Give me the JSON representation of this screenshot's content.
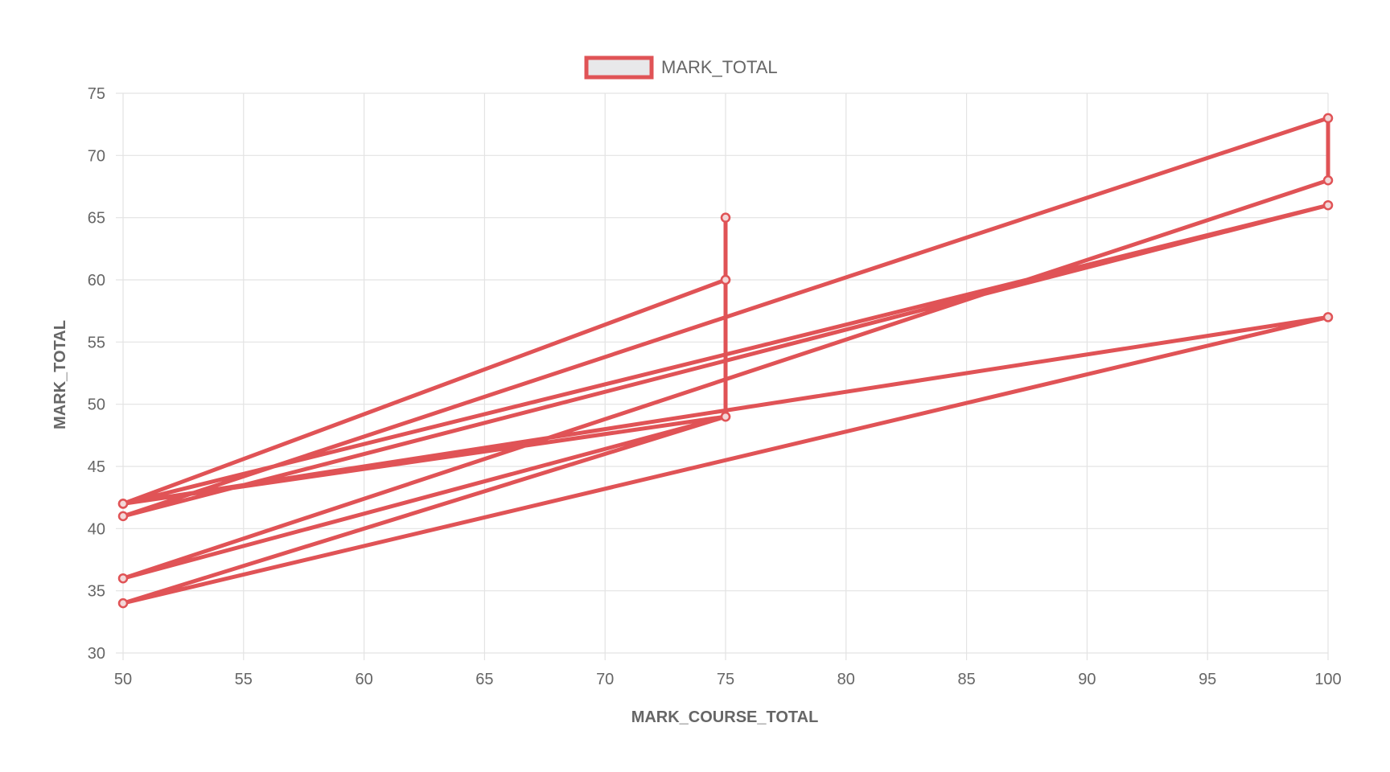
{
  "chart_data": {
    "type": "line",
    "xlabel": "MARK_COURSE_TOTAL",
    "ylabel": "MARK_TOTAL",
    "xlim": [
      50,
      100
    ],
    "ylim": [
      30,
      75
    ],
    "x_ticks": [
      50,
      55,
      60,
      65,
      70,
      75,
      80,
      85,
      90,
      95,
      100
    ],
    "y_ticks": [
      30,
      35,
      40,
      45,
      50,
      55,
      60,
      65,
      70,
      75
    ],
    "grid": true,
    "legend_position": "top-center",
    "series": [
      {
        "name": "MARK_TOTAL",
        "color": "#e05356",
        "fill": "#e8e8ea",
        "points": [
          {
            "x": 75,
            "y": 65
          },
          {
            "x": 75,
            "y": 60
          },
          {
            "x": 50,
            "y": 42
          },
          {
            "x": 100,
            "y": 66
          },
          {
            "x": 50,
            "y": 41
          },
          {
            "x": 100,
            "y": 73
          },
          {
            "x": 100,
            "y": 68
          },
          {
            "x": 50,
            "y": 36
          },
          {
            "x": 75,
            "y": 49
          },
          {
            "x": 50,
            "y": 34
          },
          {
            "x": 100,
            "y": 57
          },
          {
            "x": 50,
            "y": 42
          },
          {
            "x": 75,
            "y": 49
          },
          {
            "x": 75,
            "y": 60
          }
        ]
      }
    ]
  }
}
